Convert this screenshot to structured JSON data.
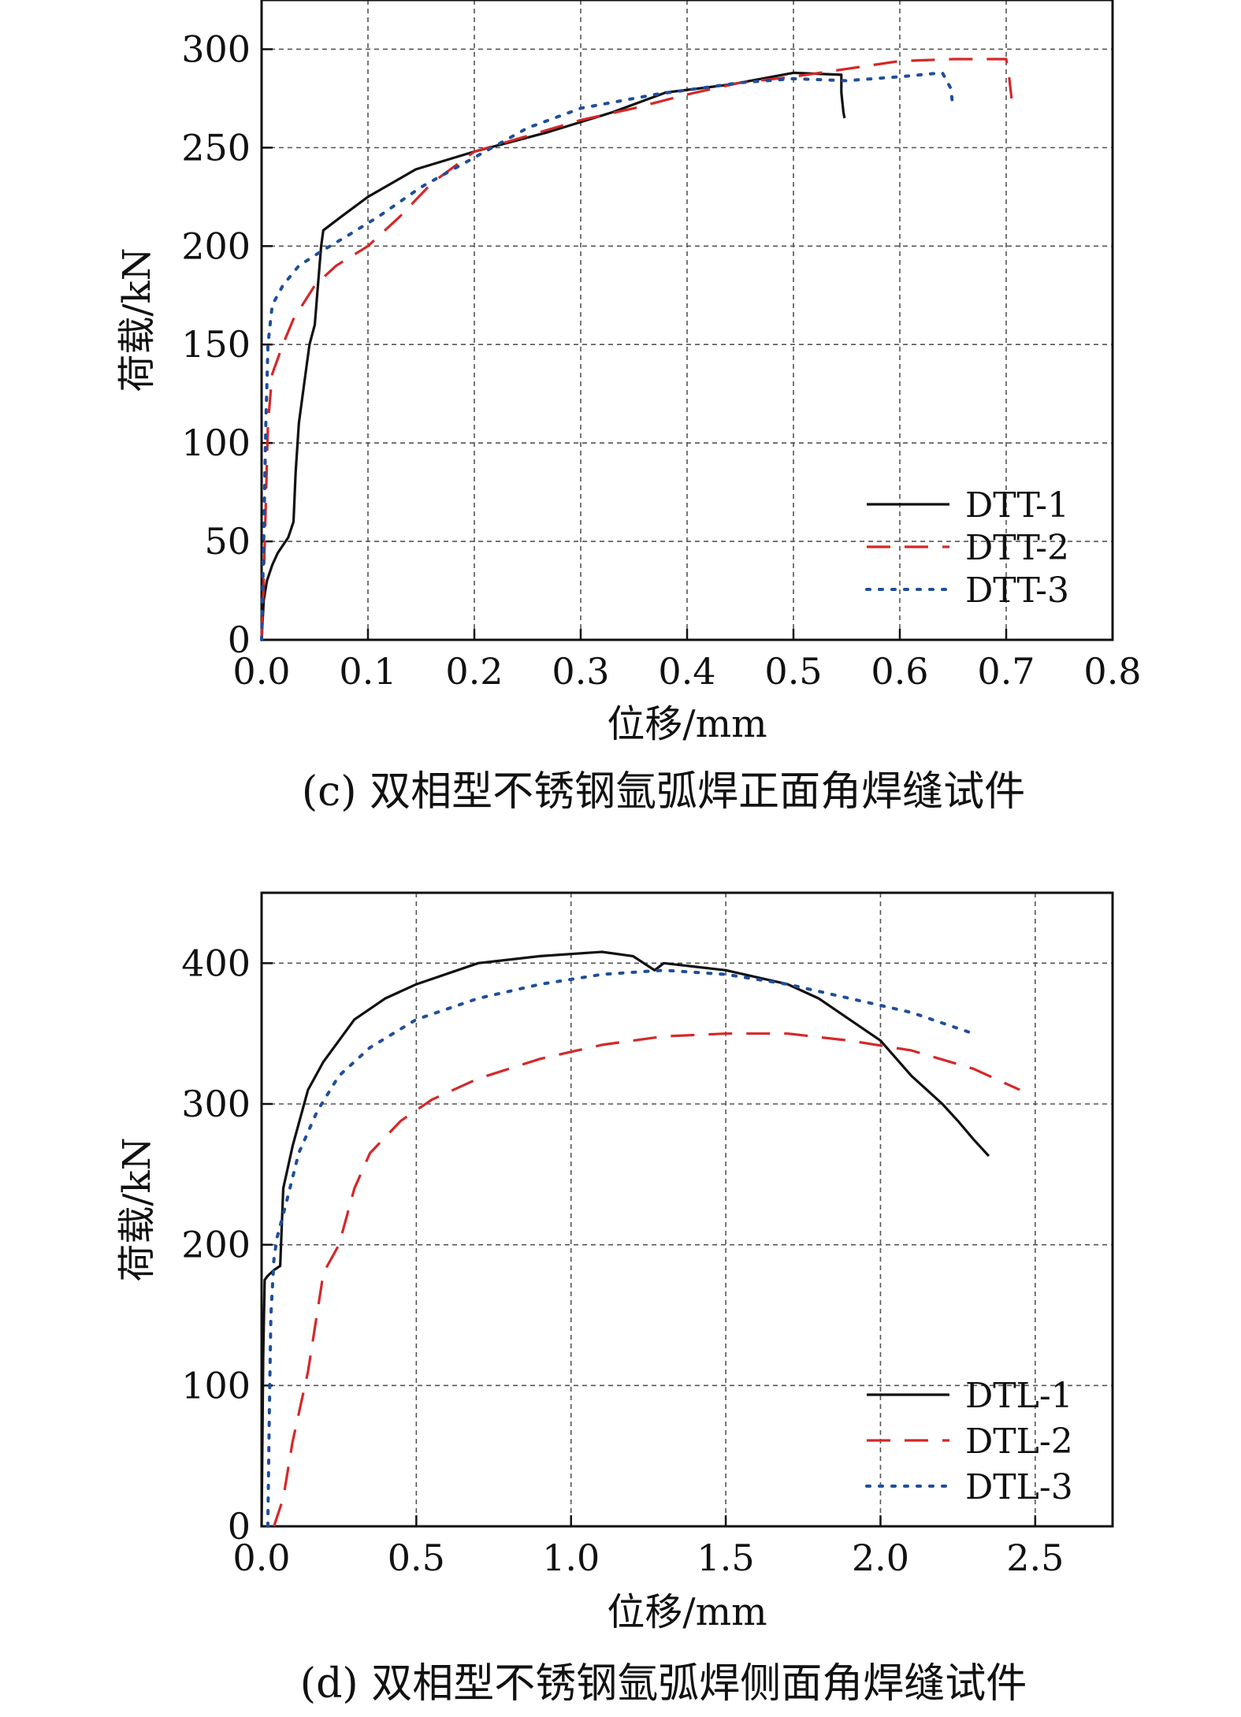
{
  "charts": [
    {
      "caption": "(c) 双相型不锈钢氩弧焊正面角焊缝试件",
      "chart_data": {
        "type": "line",
        "title": "",
        "xlabel": "位移/mm",
        "ylabel": "荷载/kN",
        "xlim": [
          0,
          0.8
        ],
        "ylim": [
          0,
          325
        ],
        "xticks": [
          "0.0",
          "0.1",
          "0.2",
          "0.3",
          "0.4",
          "0.5",
          "0.6",
          "0.7",
          "0.8"
        ],
        "yticks": [
          "0",
          "50",
          "100",
          "150",
          "200",
          "250",
          "300"
        ],
        "grid": true,
        "legend_position": "bottom-right",
        "series": [
          {
            "name": "DTT-1",
            "color": "#111111",
            "style": "solid",
            "x": [
              0,
              0.002,
              0.005,
              0.01,
              0.015,
              0.02,
              0.025,
              0.03,
              0.032,
              0.035,
              0.04,
              0.045,
              0.05,
              0.053,
              0.056,
              0.058,
              0.075,
              0.1,
              0.145,
              0.2,
              0.27,
              0.33,
              0.38,
              0.44,
              0.5,
              0.545,
              0.545,
              0.547,
              0.548
            ],
            "y": [
              0,
              20,
              30,
              38,
              44,
              48,
              52,
              60,
              85,
              110,
              130,
              150,
              160,
              180,
              200,
              208,
              215,
              225,
              239,
              248,
              258,
              268,
              278,
              282,
              288,
              287,
              278,
              268,
              265
            ]
          },
          {
            "name": "DTT-2",
            "color": "#d62728",
            "style": "dashed",
            "x": [
              0,
              0.002,
              0.004,
              0.006,
              0.01,
              0.02,
              0.03,
              0.05,
              0.07,
              0.1,
              0.13,
              0.16,
              0.2,
              0.25,
              0.3,
              0.35,
              0.4,
              0.45,
              0.5,
              0.55,
              0.6,
              0.65,
              0.7,
              0.703,
              0.705
            ],
            "y": [
              0,
              30,
              70,
              110,
              135,
              150,
              163,
              180,
              190,
              200,
              215,
              232,
              248,
              256,
              264,
              270,
              277,
              283,
              286,
              290,
              294,
              295,
              295,
              285,
              275
            ]
          },
          {
            "name": "DTT-3",
            "color": "#1f4e9c",
            "style": "dotted",
            "x": [
              0,
              0.002,
              0.004,
              0.006,
              0.01,
              0.02,
              0.035,
              0.055,
              0.08,
              0.11,
              0.15,
              0.2,
              0.25,
              0.3,
              0.37,
              0.45,
              0.5,
              0.55,
              0.6,
              0.64,
              0.648,
              0.65
            ],
            "y": [
              0,
              50,
              110,
              150,
              170,
              180,
              190,
              197,
              205,
              215,
              230,
              245,
              260,
              270,
              277,
              283,
              285,
              284,
              286,
              288,
              280,
              270
            ]
          }
        ]
      }
    },
    {
      "caption": "(d) 双相型不锈钢氩弧焊侧面角焊缝试件",
      "chart_data": {
        "type": "line",
        "title": "",
        "xlabel": "位移/mm",
        "ylabel": "荷载/kN",
        "xlim": [
          0,
          2.75
        ],
        "ylim": [
          0,
          450
        ],
        "xticks": [
          "0.0",
          "0.5",
          "1.0",
          "1.5",
          "2.0",
          "2.5"
        ],
        "yticks": [
          "0",
          "100",
          "200",
          "300",
          "400"
        ],
        "grid": true,
        "legend_position": "bottom-right",
        "series": [
          {
            "name": "DTL-1",
            "color": "#111111",
            "style": "solid",
            "x": [
              0,
              0.005,
              0.01,
              0.02,
              0.04,
              0.06,
              0.07,
              0.1,
              0.15,
              0.2,
              0.3,
              0.4,
              0.5,
              0.7,
              0.9,
              1.1,
              1.2,
              1.27,
              1.3,
              1.5,
              1.7,
              1.8,
              1.9,
              2.0,
              2.1,
              2.2,
              2.25,
              2.3,
              2.35
            ],
            "y": [
              0,
              120,
              175,
              178,
              182,
              185,
              240,
              270,
              310,
              330,
              360,
              375,
              385,
              400,
              405,
              408,
              405,
              395,
              400,
              395,
              385,
              375,
              360,
              345,
              320,
              300,
              288,
              275,
              263
            ]
          },
          {
            "name": "DTL-2",
            "color": "#d62728",
            "style": "dashed",
            "x": [
              0.04,
              0.07,
              0.1,
              0.15,
              0.2,
              0.25,
              0.3,
              0.35,
              0.45,
              0.55,
              0.7,
              0.9,
              1.1,
              1.3,
              1.5,
              1.7,
              1.9,
              2.1,
              2.3,
              2.45
            ],
            "y": [
              0,
              20,
              60,
              110,
              180,
              200,
              240,
              265,
              288,
              303,
              318,
              332,
              342,
              348,
              350,
              350,
              345,
              338,
              325,
              310
            ]
          },
          {
            "name": "DTL-3",
            "color": "#1f4e9c",
            "style": "dotted",
            "x": [
              0.02,
              0.025,
              0.03,
              0.04,
              0.05,
              0.08,
              0.12,
              0.18,
              0.25,
              0.35,
              0.5,
              0.7,
              0.9,
              1.1,
              1.3,
              1.5,
              1.7,
              1.9,
              2.1,
              2.3
            ],
            "y": [
              0,
              80,
              150,
              190,
              205,
              230,
              265,
              295,
              320,
              340,
              360,
              375,
              385,
              392,
              395,
              392,
              385,
              375,
              365,
              350
            ]
          }
        ]
      }
    }
  ]
}
